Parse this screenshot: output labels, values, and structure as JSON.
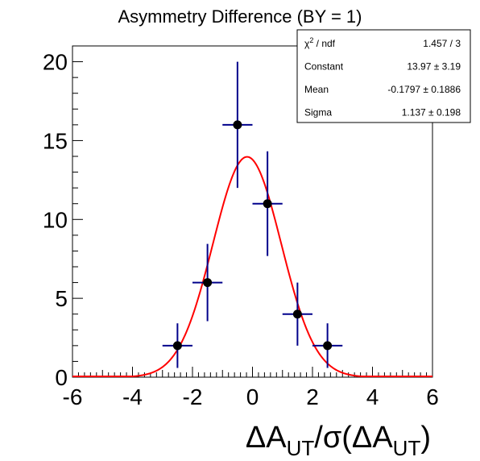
{
  "chart_data": {
    "type": "scatter",
    "title": "Asymmetry Difference (BY = 1)",
    "xlabel": {
      "main": "ΔA",
      "sub1": "UT",
      "slash": "/σ(ΔA",
      "sub2": "UT",
      "close": ")"
    },
    "ylabel": "",
    "xlim": [
      -6,
      6
    ],
    "ylim": [
      0,
      21
    ],
    "x_ticks": [
      "-6",
      "-4",
      "-2",
      "0",
      "2",
      "4",
      "6"
    ],
    "y_ticks": [
      "0",
      "5",
      "10",
      "15",
      "20"
    ],
    "x_tick_values": [
      -6,
      -4,
      -2,
      0,
      2,
      4,
      6
    ],
    "y_tick_values": [
      0,
      5,
      10,
      15,
      20
    ],
    "points": [
      {
        "x": -2.5,
        "y": 2,
        "x_err": 0.5,
        "y_err": 1.414
      },
      {
        "x": -1.5,
        "y": 6,
        "x_err": 0.5,
        "y_err": 2.449
      },
      {
        "x": -0.5,
        "y": 16,
        "x_err": 0.5,
        "y_err": 4.0
      },
      {
        "x": 0.5,
        "y": 11,
        "x_err": 0.5,
        "y_err": 3.317
      },
      {
        "x": 1.5,
        "y": 4,
        "x_err": 0.5,
        "y_err": 2.0
      },
      {
        "x": 2.5,
        "y": 2,
        "x_err": 0.5,
        "y_err": 1.414
      }
    ],
    "fit": {
      "function": "gaussian",
      "constant": 13.97,
      "mean": -0.1797,
      "sigma": 1.137
    },
    "colors": {
      "points": "#000000",
      "error_bars": "#00008b",
      "fit": "#ff0000"
    },
    "grid": false,
    "stats_box": {
      "rows": [
        {
          "label": "χ",
          "sup": "2",
          "label_rest": " / ndf",
          "value": "1.457 / 3"
        },
        {
          "label": "Constant",
          "sup": "",
          "label_rest": "",
          "value": "13.97 ± 3.19"
        },
        {
          "label": "Mean",
          "sup": "",
          "label_rest": "",
          "value": "-0.1797  ± 0.1886"
        },
        {
          "label": "Sigma",
          "sup": "",
          "label_rest": "",
          "value": "1.137 ± 0.198"
        }
      ]
    }
  }
}
